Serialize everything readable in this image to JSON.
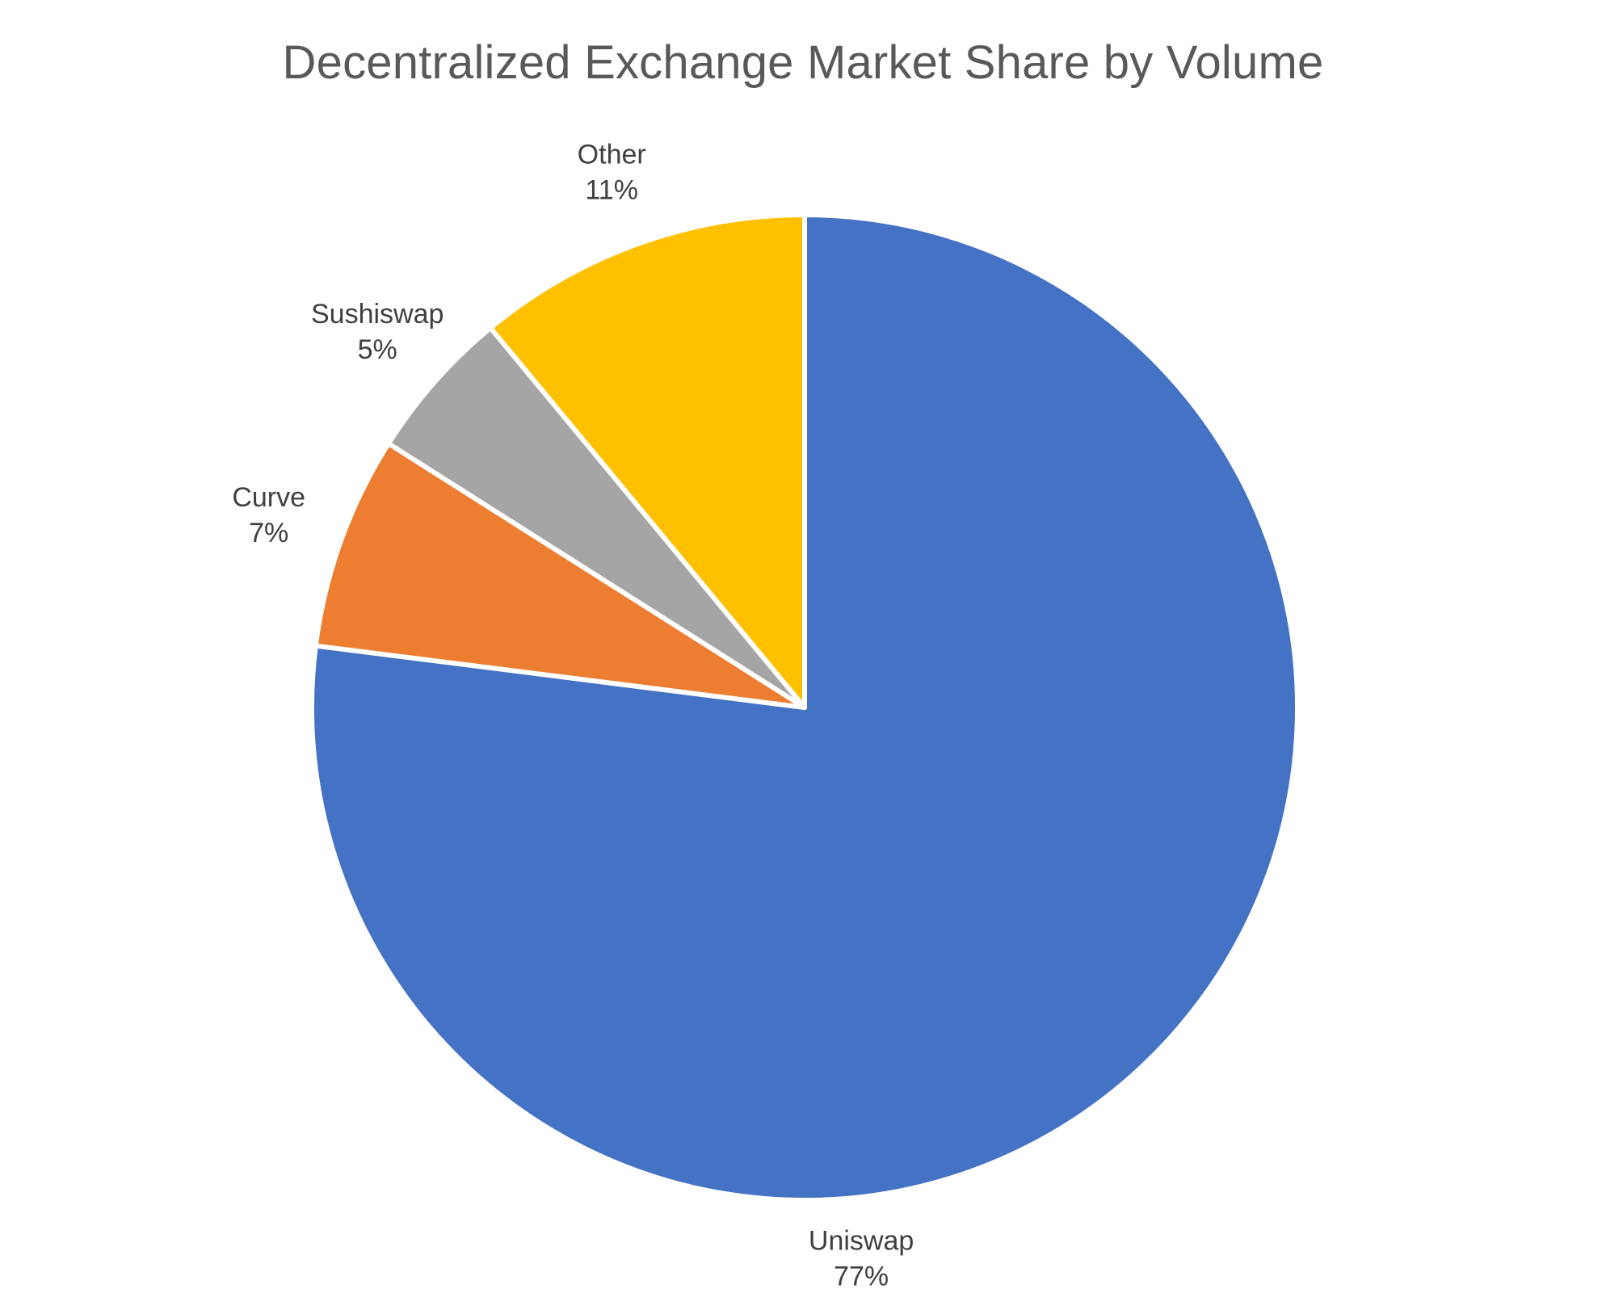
{
  "chart_data": {
    "type": "pie",
    "title": "Decentralized Exchange Market Share by Volume",
    "start_angle_deg": 0,
    "direction": "clockwise",
    "slices": [
      {
        "name": "Uniswap",
        "value": 77,
        "label": "77%",
        "color": "#4472C4"
      },
      {
        "name": "Curve",
        "value": 7,
        "label": "7%",
        "color": "#ED7D31"
      },
      {
        "name": "Sushiswap",
        "value": 5,
        "label": "5%",
        "color": "#A5A5A5"
      },
      {
        "name": "Other",
        "value": 11,
        "label": "11%",
        "color": "#FFC000"
      }
    ],
    "legend": "none",
    "data_labels": "category and percentage, outside end"
  }
}
